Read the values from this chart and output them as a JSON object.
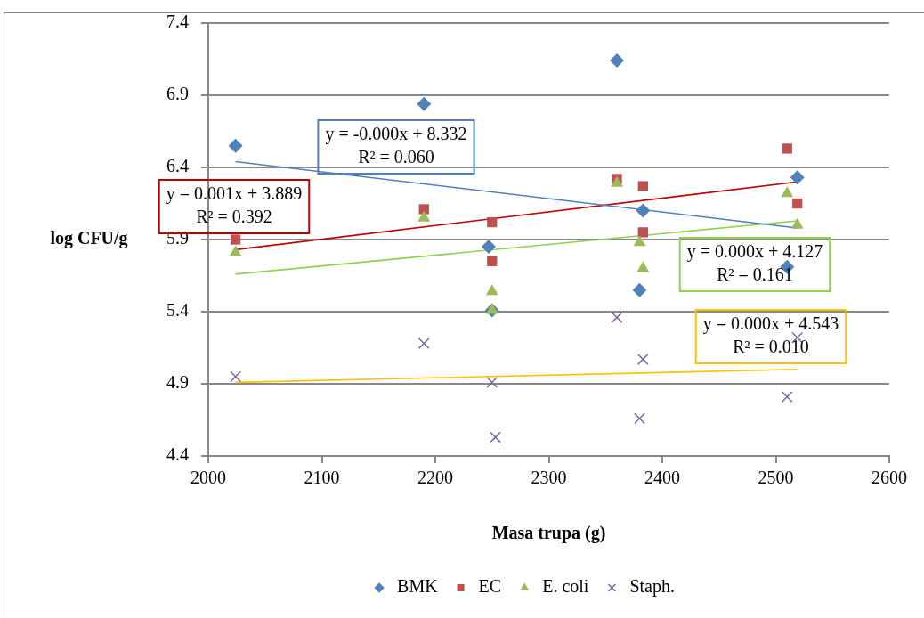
{
  "chart_data": {
    "type": "scatter",
    "xlabel": "Masa trupa (g)",
    "ylabel": "log CFU/g",
    "xlim": [
      2000,
      2600
    ],
    "xticks": [
      2000,
      2100,
      2200,
      2300,
      2400,
      2500,
      2600
    ],
    "ylim": [
      4.4,
      7.4
    ],
    "yticks": [
      4.4,
      4.9,
      5.4,
      5.9,
      6.4,
      6.9,
      7.4
    ],
    "grid": "y",
    "legend": "bottom",
    "series": [
      {
        "name": "BMK",
        "color": "#4f81bd",
        "marker": "diamond",
        "x": [
          2024,
          2190,
          2247,
          2250,
          2360,
          2380,
          2383,
          2510,
          2519
        ],
        "values": [
          6.55,
          6.84,
          5.85,
          5.41,
          7.14,
          5.55,
          6.1,
          5.71,
          6.33
        ]
      },
      {
        "name": "EC",
        "color": "#c0504d",
        "marker": "square",
        "x": [
          2024,
          2190,
          2250,
          2250,
          2360,
          2383,
          2383,
          2510,
          2519
        ],
        "values": [
          5.9,
          6.11,
          6.02,
          5.75,
          6.32,
          6.27,
          5.95,
          6.53,
          6.15
        ]
      },
      {
        "name": "E. coli",
        "color": "#9bbb59",
        "marker": "triangle",
        "x": [
          2024,
          2190,
          2250,
          2250,
          2360,
          2380,
          2383,
          2510,
          2519
        ],
        "values": [
          5.81,
          6.05,
          5.54,
          5.41,
          6.29,
          5.88,
          5.7,
          6.22,
          6.0
        ]
      },
      {
        "name": "Staph.",
        "color": "#8064a2",
        "marker": "cross",
        "x": [
          2024,
          2190,
          2250,
          2253,
          2360,
          2383,
          2380,
          2510,
          2519
        ],
        "values": [
          4.95,
          5.18,
          4.91,
          4.53,
          5.36,
          5.07,
          4.66,
          4.81,
          5.22
        ]
      },
      {
        "type": "line",
        "color": "#4f81bd",
        "marker": "none",
        "x": [
          2024,
          2519
        ],
        "values": [
          6.44,
          5.98
        ]
      },
      {
        "type": "line",
        "color": "#c00000",
        "marker": "none",
        "x": [
          2024,
          2519
        ],
        "values": [
          5.83,
          6.3
        ]
      },
      {
        "type": "line",
        "color": "#92d050",
        "marker": "none",
        "x": [
          2024,
          2519
        ],
        "values": [
          5.66,
          6.03
        ]
      },
      {
        "type": "line",
        "color": "#ffc000",
        "marker": "none",
        "x": [
          2024,
          2519
        ],
        "values": [
          4.91,
          5.0
        ]
      }
    ],
    "annotations": [
      "y = -0.000x + 8.332\nR² = 0.060",
      "y = 0.001x + 3.889\nR² = 0.392",
      "y = 0.000x + 4.127\nR² = 0.161",
      "y = 0.000x + 4.543\nR² = 0.010"
    ]
  }
}
